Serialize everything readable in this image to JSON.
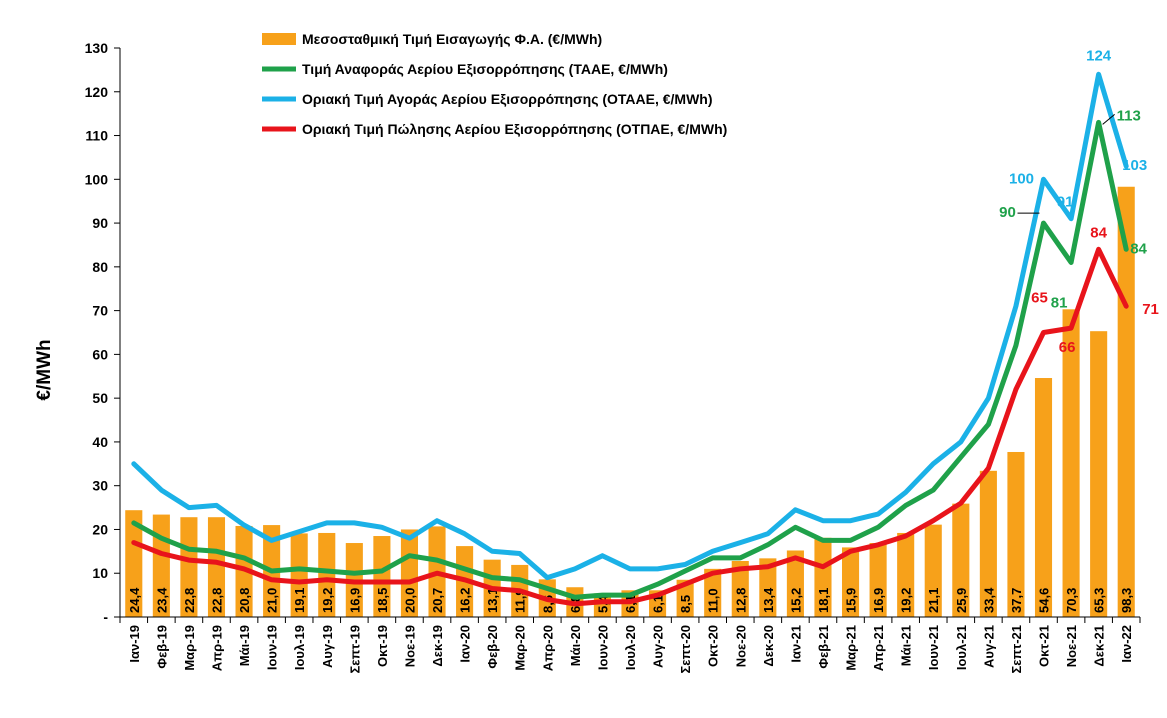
{
  "chart_data": {
    "type": "bar+line",
    "ylabel": "€/MWh",
    "ylim": [
      0,
      130
    ],
    "yticks": [
      {
        "value": 0,
        "label": "-"
      },
      {
        "value": 10,
        "label": "10"
      },
      {
        "value": 20,
        "label": "20"
      },
      {
        "value": 30,
        "label": "30"
      },
      {
        "value": 40,
        "label": "40"
      },
      {
        "value": 50,
        "label": "50"
      },
      {
        "value": 60,
        "label": "60"
      },
      {
        "value": 70,
        "label": "70"
      },
      {
        "value": 80,
        "label": "80"
      },
      {
        "value": 90,
        "label": "90"
      },
      {
        "value": 100,
        "label": "100"
      },
      {
        "value": 110,
        "label": "110"
      },
      {
        "value": 120,
        "label": "120"
      },
      {
        "value": 130,
        "label": "130"
      }
    ],
    "categories": [
      "Ιαν-19",
      "Φεβ-19",
      "Μαρ-19",
      "Απρ-19",
      "Μάι-19",
      "Ιουν-19",
      "Ιουλ-19",
      "Αυγ-19",
      "Σεπτ-19",
      "Οκτ-19",
      "Νοε-19",
      "Δεκ-19",
      "Ιαν-20",
      "Φεβ-20",
      "Μαρ-20",
      "Απρ-20",
      "Μάι-20",
      "Ιουν-20",
      "Ιουλ-20",
      "Αυγ-20",
      "Σεπτ-20",
      "Οκτ-20",
      "Νοε-20",
      "Δεκ-20",
      "Ιαν-21",
      "Φεβ-21",
      "Μαρ-21",
      "Απρ-21",
      "Μάι-21",
      "Ιουν-21",
      "Ιουλ-21",
      "Αυγ-21",
      "Σεπτ-21",
      "Οκτ-21",
      "Νοε-21",
      "Δεκ-21",
      "Ιαν-22"
    ],
    "bars": {
      "name": "Μεσοσταθμική Τιμή Εισαγωγής Φ.Α. (€/MWh)",
      "color": "#F7A11A",
      "values": [
        24.4,
        23.4,
        22.8,
        22.8,
        20.8,
        21.0,
        19.1,
        19.2,
        16.9,
        18.5,
        20.0,
        20.7,
        16.2,
        13.1,
        11.9,
        8.6,
        6.8,
        5.4,
        6.1,
        6.1,
        8.5,
        11.0,
        12.8,
        13.4,
        15.2,
        18.1,
        15.9,
        16.9,
        19.2,
        21.1,
        25.9,
        33.4,
        37.7,
        54.6,
        70.3,
        65.3,
        98.3
      ],
      "labels": [
        "24,4",
        "23,4",
        "22,8",
        "22,8",
        "20,8",
        "21,0",
        "19,1",
        "19,2",
        "16,9",
        "18,5",
        "20,0",
        "20,7",
        "16,2",
        "13,1",
        "11,9",
        "8,6",
        "6,8",
        "5,4",
        "6,1",
        "6,1",
        "8,5",
        "11,0",
        "12,8",
        "13,4",
        "15,2",
        "18,1",
        "15,9",
        "16,9",
        "19,2",
        "21,1",
        "25,9",
        "33,4",
        "37,7",
        "54,6",
        "70,3",
        "65,3",
        "98,3"
      ]
    },
    "series": [
      {
        "name": "Τιμή Αναφοράς Αερίου Εξισορρόπησης (ΤΑΑΕ, €/MWh)",
        "color": "#1FA14A",
        "values": [
          21.5,
          18.0,
          15.5,
          15.0,
          13.5,
          10.5,
          11.0,
          10.5,
          10.0,
          10.5,
          14.0,
          13.0,
          11.0,
          9.0,
          8.5,
          6.5,
          4.5,
          5.0,
          5.0,
          7.5,
          10.5,
          13.5,
          13.5,
          16.5,
          20.5,
          17.5,
          17.5,
          20.5,
          25.5,
          29.0,
          36.5,
          44.0,
          62.0,
          90.0,
          81.0,
          113.0,
          84.0
        ]
      },
      {
        "name": "Οριακή Τιμή Αγοράς Αερίου Εξισορρόπησης  (ΟΤΑΑΕ, €/MWh)",
        "color": "#1BB1E7",
        "values": [
          35.0,
          29.0,
          25.0,
          25.5,
          21.0,
          17.5,
          19.5,
          21.5,
          21.5,
          20.5,
          18.0,
          22.0,
          19.0,
          15.0,
          14.5,
          9.0,
          11.0,
          14.0,
          11.0,
          11.0,
          12.0,
          15.0,
          17.0,
          19.0,
          24.5,
          22.0,
          22.0,
          23.5,
          28.5,
          35.0,
          40.0,
          50.0,
          71.0,
          100.0,
          91.0,
          124.0,
          103.0
        ]
      },
      {
        "name": "Οριακή Τιμή Πώλησης Αερίου Εξισορρόπησης (ΟΤΠΑΕ, €/MWh)",
        "color": "#E8141B",
        "values": [
          17.0,
          14.5,
          13.0,
          12.5,
          11.0,
          8.5,
          8.0,
          8.5,
          8.0,
          8.0,
          8.0,
          10.0,
          8.5,
          6.5,
          6.0,
          4.0,
          3.0,
          3.5,
          3.5,
          5.0,
          7.5,
          10.0,
          11.0,
          11.5,
          13.5,
          11.5,
          15.0,
          16.5,
          18.5,
          22.0,
          26.0,
          34.0,
          52.0,
          65.0,
          66.0,
          84.0,
          71.0
        ]
      }
    ],
    "annotations": [
      {
        "series": 1,
        "index": 33,
        "text": "100",
        "color": "#1BB1E7"
      },
      {
        "series": 1,
        "index": 34,
        "text": "91",
        "color": "#1BB1E7"
      },
      {
        "series": 1,
        "index": 35,
        "text": "124",
        "color": "#1BB1E7"
      },
      {
        "series": 1,
        "index": 36,
        "text": "103",
        "color": "#1BB1E7"
      },
      {
        "series": 0,
        "index": 33,
        "text": "90",
        "color": "#1FA14A"
      },
      {
        "series": 0,
        "index": 34,
        "text": "81",
        "color": "#1FA14A"
      },
      {
        "series": 0,
        "index": 35,
        "text": "113",
        "color": "#1FA14A"
      },
      {
        "series": 0,
        "index": 36,
        "text": "84",
        "color": "#1FA14A"
      },
      {
        "series": 2,
        "index": 33,
        "text": "65",
        "color": "#E8141B"
      },
      {
        "series": 2,
        "index": 34,
        "text": "66",
        "color": "#E8141B"
      },
      {
        "series": 2,
        "index": 35,
        "text": "84",
        "color": "#E8141B"
      },
      {
        "series": 2,
        "index": 36,
        "text": "71",
        "color": "#E8141B"
      }
    ],
    "legend_position": "top-left"
  }
}
